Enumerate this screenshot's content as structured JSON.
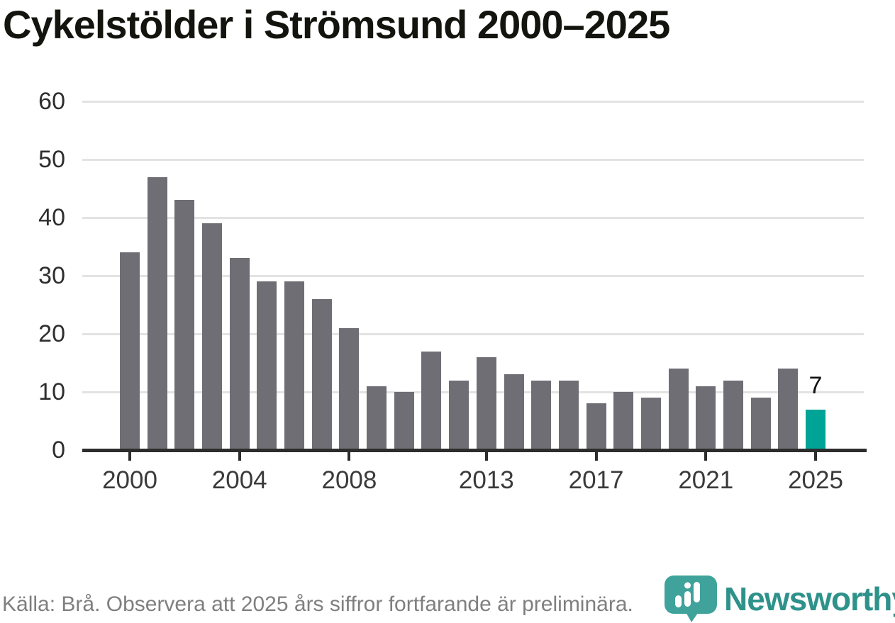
{
  "title": "Cykelstölder i Strömsund 2000–2025",
  "chart_data": {
    "type": "bar",
    "title": "Cykelstölder i Strömsund 2000–2025",
    "categories": [
      2000,
      2001,
      2002,
      2003,
      2004,
      2005,
      2006,
      2007,
      2008,
      2009,
      2010,
      2011,
      2012,
      2013,
      2014,
      2015,
      2016,
      2017,
      2018,
      2019,
      2020,
      2021,
      2022,
      2023,
      2024,
      2025
    ],
    "values": [
      34,
      47,
      43,
      39,
      33,
      29,
      29,
      26,
      21,
      11,
      10,
      17,
      12,
      16,
      13,
      12,
      12,
      8,
      10,
      9,
      14,
      11,
      12,
      9,
      14,
      7
    ],
    "xlabel": "",
    "ylabel": "",
    "ylim": [
      0,
      60
    ],
    "yticks": [
      0,
      10,
      20,
      30,
      40,
      50,
      60
    ],
    "xticks": [
      2000,
      2004,
      2008,
      2013,
      2017,
      2021,
      2025
    ],
    "grid": "horizontal",
    "legend": "none",
    "bar_color": "#6e6e74",
    "highlight": {
      "category": 2025,
      "color": "#00a496",
      "label": "7"
    }
  },
  "footer": {
    "source_note": "Källa: Brå. Observera att 2025 års siffror fortfarande är preliminära."
  },
  "logo": {
    "text": "Newsworthy",
    "icon": "newsworthy-chat-bubble-bars-icon",
    "icon_color": "#3fa29b",
    "text_color": "#2e928b"
  },
  "colors": {
    "background": "#ffffff",
    "gridline": "#e3e3e3",
    "axis": "#2d2d2d",
    "tick_label": "#3a3a3a",
    "title": "#14140f",
    "footer": "#7f7f7f"
  }
}
